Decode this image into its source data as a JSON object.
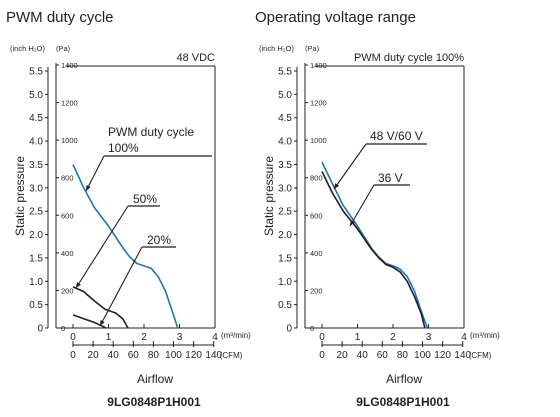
{
  "chart_data": [
    {
      "type": "line",
      "title": "PWM duty cycle",
      "header_note": "48 VDC",
      "xlabel": "Airflow",
      "ylabel": "Static pressure",
      "model": "9LG0848P1H001",
      "x_unit_primary": "(m³/min)",
      "x_unit_secondary": "(CFM)",
      "y_unit_primary": "(inch H₂O)",
      "y_unit_secondary": "(Pa)",
      "xlim": [
        0,
        4
      ],
      "ylim": [
        0,
        5.5
      ],
      "x_ticks": [
        0,
        1,
        2,
        3,
        4
      ],
      "x_ticks_cfm": [
        0,
        20,
        40,
        60,
        80,
        100,
        120,
        140
      ],
      "y_ticks_inch": [
        "0",
        "0.5",
        "1.0",
        "1.5",
        "2.0",
        "2.5",
        "3.0",
        "3.5",
        "4.0",
        "4.5",
        "5.0",
        "5.5"
      ],
      "y_ticks_pa": [
        0,
        200,
        400,
        600,
        800,
        1000,
        1200,
        1400
      ],
      "series": [
        {
          "name": "PWM duty cycle 100%",
          "color": "#1b75bc",
          "points": [
            [
              0,
              3.5
            ],
            [
              0.3,
              3.0
            ],
            [
              0.6,
              2.58
            ],
            [
              1.0,
              2.18
            ],
            [
              1.4,
              1.72
            ],
            [
              1.6,
              1.52
            ],
            [
              1.8,
              1.38
            ],
            [
              2.0,
              1.33
            ],
            [
              2.2,
              1.28
            ],
            [
              2.4,
              1.1
            ],
            [
              2.6,
              0.8
            ],
            [
              2.8,
              0.35
            ],
            [
              2.95,
              0
            ]
          ]
        },
        {
          "name": "50%",
          "color": "#231f20",
          "points": [
            [
              0,
              0.88
            ],
            [
              0.3,
              0.78
            ],
            [
              0.6,
              0.58
            ],
            [
              0.9,
              0.4
            ],
            [
              1.2,
              0.32
            ],
            [
              1.4,
              0.2
            ],
            [
              1.55,
              0
            ]
          ]
        },
        {
          "name": "20%",
          "color": "#231f20",
          "points": [
            [
              0,
              0.28
            ],
            [
              0.3,
              0.2
            ],
            [
              0.6,
              0.12
            ],
            [
              0.8,
              0.05
            ],
            [
              0.93,
              0
            ]
          ]
        }
      ],
      "annotations": [
        "PWM duty cycle",
        "100%",
        "50%",
        "20%"
      ]
    },
    {
      "type": "line",
      "title": "Operating voltage range",
      "header_note": "PWM duty cycle 100%",
      "xlabel": "Airflow",
      "ylabel": "Static pressure",
      "model": "9LG0848P1H001",
      "x_unit_primary": "(m³/min)",
      "x_unit_secondary": "(CFM)",
      "y_unit_primary": "(inch H₂O)",
      "y_unit_secondary": "(Pa)",
      "xlim": [
        0,
        4
      ],
      "ylim": [
        0,
        5.5
      ],
      "x_ticks": [
        0,
        1,
        2,
        3,
        4
      ],
      "x_ticks_cfm": [
        0,
        20,
        40,
        60,
        80,
        100,
        120,
        140
      ],
      "y_ticks_inch": [
        "0",
        "0.5",
        "1.0",
        "1.5",
        "2.0",
        "2.5",
        "3.0",
        "3.5",
        "4.0",
        "4.5",
        "5.0",
        "5.5"
      ],
      "y_ticks_pa": [
        0,
        200,
        400,
        600,
        800,
        1000,
        1200,
        1400
      ],
      "series": [
        {
          "name": "48 V/60 V",
          "color": "#1b75bc",
          "points": [
            [
              0,
              3.55
            ],
            [
              0.3,
              3.08
            ],
            [
              0.6,
              2.62
            ],
            [
              1.0,
              2.18
            ],
            [
              1.4,
              1.7
            ],
            [
              1.6,
              1.52
            ],
            [
              1.8,
              1.38
            ],
            [
              2.0,
              1.33
            ],
            [
              2.2,
              1.26
            ],
            [
              2.4,
              1.1
            ],
            [
              2.6,
              0.8
            ],
            [
              2.8,
              0.35
            ],
            [
              2.97,
              0
            ]
          ]
        },
        {
          "name": "36 V",
          "color": "#231f20",
          "points": [
            [
              0,
              3.35
            ],
            [
              0.3,
              2.88
            ],
            [
              0.6,
              2.5
            ],
            [
              1.0,
              2.12
            ],
            [
              1.4,
              1.68
            ],
            [
              1.6,
              1.5
            ],
            [
              1.8,
              1.36
            ],
            [
              2.0,
              1.3
            ],
            [
              2.2,
              1.2
            ],
            [
              2.4,
              1.0
            ],
            [
              2.6,
              0.68
            ],
            [
              2.8,
              0.3
            ],
            [
              2.9,
              0
            ]
          ]
        }
      ],
      "annotations": [
        "48 V/60 V",
        "36 V"
      ]
    }
  ]
}
